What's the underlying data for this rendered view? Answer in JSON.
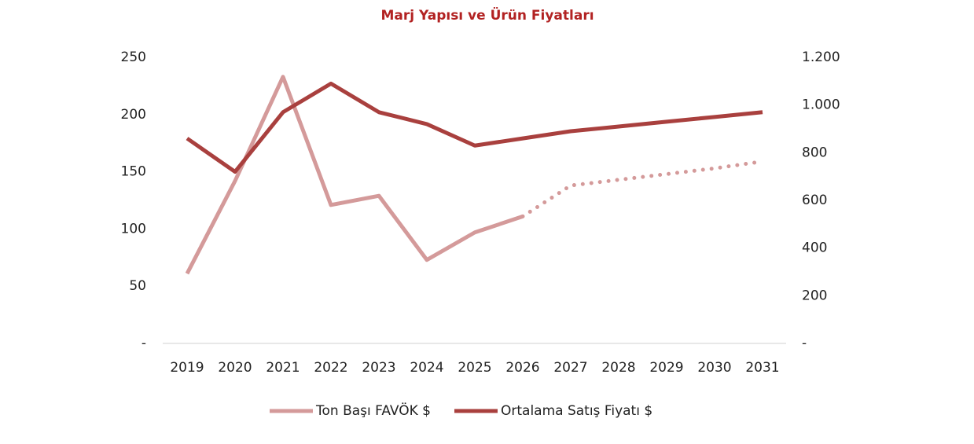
{
  "chart_data": {
    "type": "line",
    "title": "Marj Yapısı ve Ürün Fiyatları",
    "categories": [
      "2019",
      "2020",
      "2021",
      "2022",
      "2023",
      "2024",
      "2025",
      "2026",
      "2027",
      "2028",
      "2029",
      "2030",
      "2031"
    ],
    "series": [
      {
        "name": "Ton Başı FAVÖK $",
        "color": "#d49a9a",
        "axis": "y",
        "dotted_from": "2026",
        "values": [
          61,
          142,
          233,
          121,
          129,
          73,
          97,
          111,
          138,
          143,
          148,
          153,
          159
        ]
      },
      {
        "name": "Ortalama Satış Fiyatı $",
        "color": "#a9403e",
        "axis": "y2",
        "values": [
          860,
          720,
          970,
          1090,
          970,
          920,
          830,
          860,
          890,
          910,
          930,
          950,
          970
        ]
      }
    ],
    "ylim": [
      0,
      250
    ],
    "yticks": [
      {
        "value": 0,
        "label": "-"
      },
      50,
      100,
      150,
      200,
      250
    ],
    "y2lim": [
      0,
      1200
    ],
    "y2ticks": [
      {
        "value": 0,
        "label": "-"
      },
      200,
      400,
      600,
      800,
      {
        "value": 1000,
        "label": "1.000"
      },
      {
        "value": 1200,
        "label": "1.200"
      }
    ],
    "grid": false,
    "legend": "bottom"
  }
}
